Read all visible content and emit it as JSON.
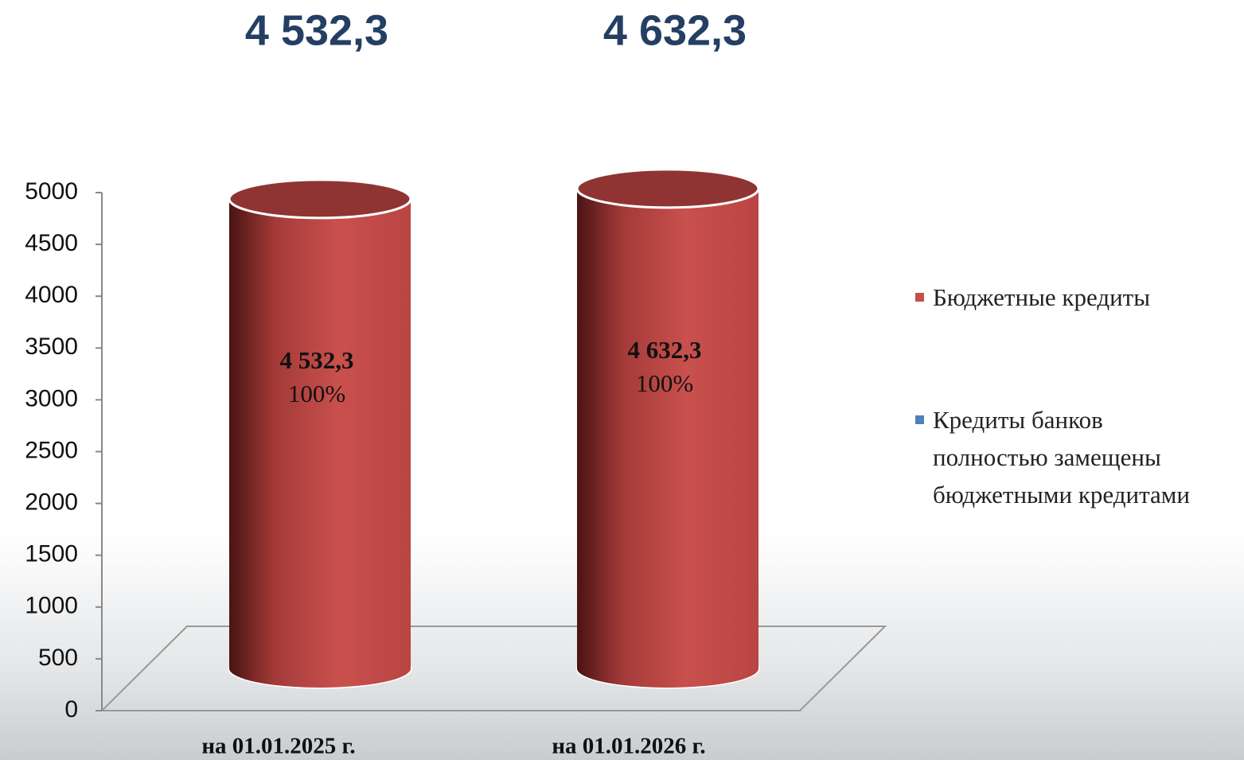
{
  "chart_data": {
    "type": "cylinder",
    "annotations": [
      "4 532,3",
      "4 632,3"
    ],
    "categories": [
      "на 01.01.2025 г.",
      "на 01.01.2026 г."
    ],
    "series": [
      {
        "name": "Бюджетные кредиты",
        "color": "#c0504d",
        "values": [
          4532.3,
          4632.3
        ],
        "value_labels": [
          "4 532,3",
          "4 632,3"
        ],
        "percent_labels": [
          "100%",
          "100%"
        ]
      },
      {
        "name": "Кредиты банков полностью замещены бюджетными кредитами",
        "color": "#4f81bd",
        "values": [
          null,
          null
        ]
      }
    ],
    "ylim": [
      0,
      5000
    ],
    "yticks": [
      0,
      500,
      1000,
      1500,
      2000,
      2500,
      3000,
      3500,
      4000,
      4500,
      5000
    ],
    "legend": "right"
  }
}
